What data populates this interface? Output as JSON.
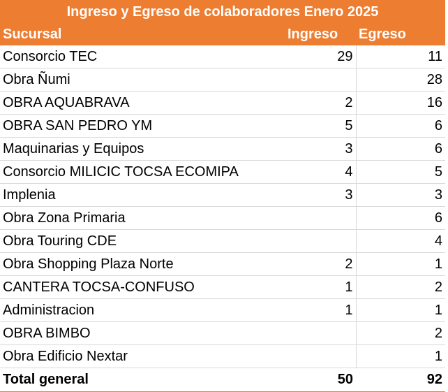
{
  "table": {
    "title": "Ingreso y Egreso de colaboradores Enero 2025",
    "headers": [
      "Sucursal",
      "Ingreso",
      "Egreso"
    ],
    "rows": [
      {
        "sucursal": "Consorcio TEC",
        "ingreso": "29",
        "egreso": "11"
      },
      {
        "sucursal": "Obra Ñumi",
        "ingreso": "",
        "egreso": "28"
      },
      {
        "sucursal": "OBRA AQUABRAVA",
        "ingreso": "2",
        "egreso": "16"
      },
      {
        "sucursal": "OBRA SAN PEDRO YM",
        "ingreso": "5",
        "egreso": "6"
      },
      {
        "sucursal": "Maquinarias y Equipos",
        "ingreso": "3",
        "egreso": "6"
      },
      {
        "sucursal": "Consorcio MILICIC TOCSA ECOMIPA",
        "ingreso": "4",
        "egreso": "5"
      },
      {
        "sucursal": "Implenia",
        "ingreso": "3",
        "egreso": "3"
      },
      {
        "sucursal": "Obra Zona Primaria",
        "ingreso": "",
        "egreso": "6"
      },
      {
        "sucursal": "Obra Touring CDE",
        "ingreso": "",
        "egreso": "4"
      },
      {
        "sucursal": "Obra Shopping Plaza Norte",
        "ingreso": "2",
        "egreso": "1"
      },
      {
        "sucursal": "CANTERA TOCSA-CONFUSO",
        "ingreso": "1",
        "egreso": "2"
      },
      {
        "sucursal": "Administracion",
        "ingreso": "1",
        "egreso": "1"
      },
      {
        "sucursal": "OBRA BIMBO",
        "ingreso": "",
        "egreso": "2"
      },
      {
        "sucursal": "Obra Edificio Nextar",
        "ingreso": "",
        "egreso": "1"
      }
    ],
    "total": {
      "label": "Total general",
      "ingreso": "50",
      "egreso": "92"
    }
  },
  "colors": {
    "header_background": "#ed7d31",
    "header_text": "#ffffff",
    "grid_line": "#d9d9d9"
  }
}
